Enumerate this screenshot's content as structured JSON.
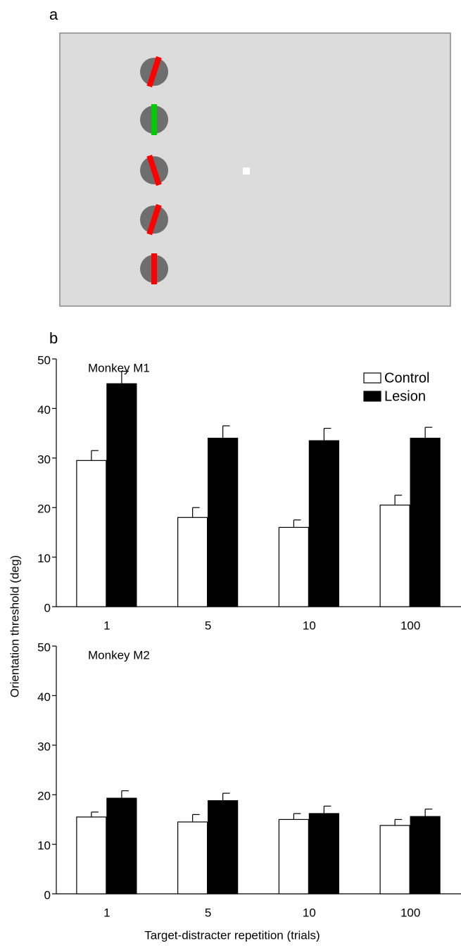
{
  "panels": {
    "a": "a",
    "b": "b"
  },
  "shared_axes": {
    "y_label": "Orientation threshold (deg)",
    "x_label": "Target-distracter repetition (trials)"
  },
  "chart_data": [
    {
      "type": "bar",
      "title": "Monkey M1",
      "categories": [
        "1",
        "5",
        "10",
        "100"
      ],
      "series": [
        {
          "name": "Control",
          "color": "#ffffff",
          "values": [
            29.5,
            18,
            16,
            20.5
          ],
          "errors": [
            2,
            2,
            1.5,
            2
          ]
        },
        {
          "name": "Lesion",
          "color": "#000000",
          "values": [
            45,
            34,
            33.5,
            34
          ],
          "errors": [
            2.5,
            2.5,
            2.5,
            2.2
          ]
        }
      ],
      "ylim": [
        0,
        50
      ],
      "yticks": [
        0,
        10,
        20,
        30,
        40,
        50
      ],
      "legend": "upper right"
    },
    {
      "type": "bar",
      "title": "Monkey M2",
      "categories": [
        "1",
        "5",
        "10",
        "100"
      ],
      "series": [
        {
          "color": "#ffffff",
          "values": [
            15.5,
            14.5,
            15,
            13.8
          ],
          "errors": [
            1,
            1.5,
            1.2,
            1.2
          ]
        },
        {
          "color": "#000000",
          "values": [
            19.3,
            18.8,
            16.2,
            15.6
          ],
          "errors": [
            1.5,
            1.5,
            1.5,
            1.5
          ]
        }
      ],
      "ylim": [
        0,
        50
      ],
      "yticks": [
        0,
        10,
        20,
        30,
        40,
        50
      ]
    }
  ]
}
